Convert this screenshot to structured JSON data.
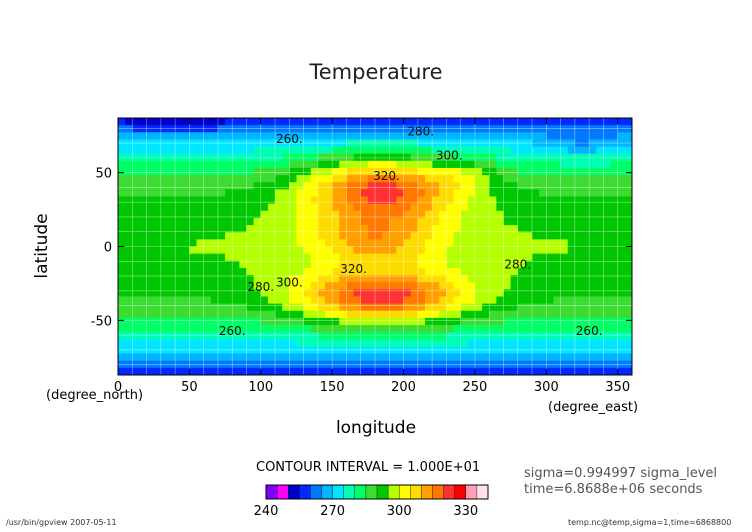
{
  "chart_data": {
    "type": "heatmap",
    "title": "Temperature",
    "xlabel": "longitude",
    "ylabel": "latitude",
    "x_unit": "(degree_north)",
    "x_unit_2": "(degree_east)",
    "xlim": [
      0,
      360
    ],
    "ylim": [
      -87,
      87
    ],
    "xticks": [
      0,
      50,
      100,
      150,
      200,
      250,
      300,
      350
    ],
    "yticks": [
      50,
      0,
      -50
    ],
    "grid": true,
    "contour_interval_label": "CONTOUR INTERVAL = 1.000E+01",
    "colorbar": {
      "levels": [
        240,
        245,
        250,
        255,
        260,
        265,
        270,
        275,
        280,
        285,
        290,
        295,
        300,
        305,
        310,
        315,
        320,
        325,
        330,
        335
      ],
      "colors": [
        "#7f00ff",
        "#ff00ff",
        "#0000c8",
        "#0028ff",
        "#0078ff",
        "#00b4ff",
        "#00e6ff",
        "#00ffb4",
        "#00ff64",
        "#3cdc32",
        "#00c800",
        "#b4ff00",
        "#ffff00",
        "#ffdc00",
        "#ffa000",
        "#ff7800",
        "#ff3232",
        "#ff0000",
        "#ffa0b4",
        "#ffe0e6"
      ],
      "tick_labels": [
        "240",
        "270",
        "300",
        "330"
      ],
      "tick_values": [
        240,
        270,
        300,
        330
      ]
    },
    "contour_labels": [
      {
        "text": "260.",
        "lon": 120,
        "lat": 70
      },
      {
        "text": "280.",
        "lon": 212,
        "lat": 75
      },
      {
        "text": "300.",
        "lon": 232,
        "lat": 59
      },
      {
        "text": "320.",
        "lon": 188,
        "lat": 45
      },
      {
        "text": "320.",
        "lon": 165,
        "lat": -18
      },
      {
        "text": "300.",
        "lon": 120,
        "lat": -27
      },
      {
        "text": "280.",
        "lon": 100,
        "lat": -30
      },
      {
        "text": "280.",
        "lon": 280,
        "lat": -15
      },
      {
        "text": "260.",
        "lon": 80,
        "lat": -60
      },
      {
        "text": "260.",
        "lon": 330,
        "lat": -60
      }
    ]
  },
  "annotations": {
    "sigma": "sigma=0.994997 sigma_level",
    "time": "time=6.8688e+06 seconds",
    "footer_left": "/usr/bin/gpview  2007-05-11",
    "footer_right": "temp.nc@temp,sigma=1,time=6868800"
  }
}
